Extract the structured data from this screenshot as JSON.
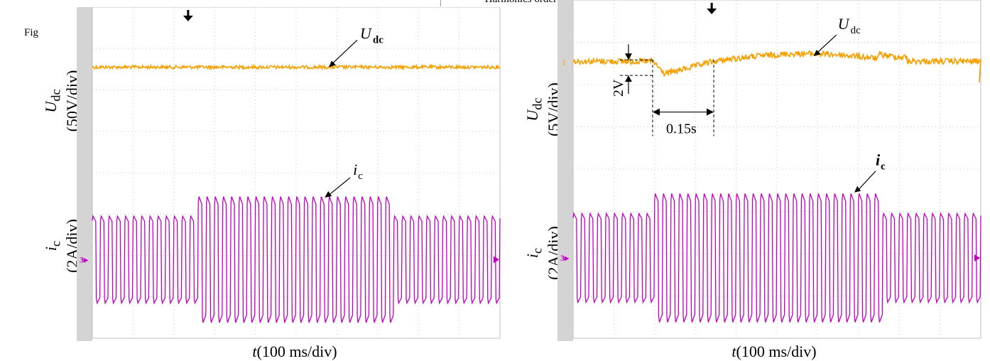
{
  "page": {
    "fragment_label": "Fig",
    "top_fragment": "Harmonics order n"
  },
  "chart_data": [
    {
      "type": "line",
      "panel": "left",
      "xlabel_var": "t",
      "xlabel_unit": "(100 ms/div)",
      "divisions_x": 10,
      "divisions_y": 8,
      "trigger_marker_div": 2.35,
      "udc": {
        "ylabel_var": "U",
        "ylabel_sub": "dc",
        "scale": "(50V/div)",
        "annotation": "U",
        "annotation_sub": "dc",
        "color": "#f5a000",
        "series": [
          {
            "t_div": [
              0,
              10
            ],
            "level_div": [
              1.45,
              1.45
            ],
            "noise_div": 0.04
          }
        ]
      },
      "ic": {
        "ylabel_var": "i",
        "ylabel_sub": "c",
        "scale": "(2A/div)",
        "annotation": "i",
        "annotation_sub": "c",
        "color": "#c000c0",
        "marker": "3",
        "cycles_per_div": 5,
        "envelope": [
          {
            "t_div": [
              0,
              2.55
            ],
            "amp_div": 1.0
          },
          {
            "t_div": [
              2.55,
              7.35
            ],
            "amp_div": 1.45
          },
          {
            "t_div": [
              7.35,
              10
            ],
            "amp_div": 1.0
          }
        ]
      }
    },
    {
      "type": "line",
      "panel": "right",
      "xlabel_var": "t",
      "xlabel_unit": "(100 ms/div)",
      "divisions_x": 10,
      "divisions_y": 8,
      "trigger_marker_div": 3.4,
      "udc": {
        "ylabel_var": "U",
        "ylabel_sub": "dc",
        "scale": "(5V/div)",
        "annotation": "U",
        "annotation_sub": "dc",
        "color": "#f5a000",
        "marker": "1",
        "dip_label": "2V",
        "dip_div": 0.3,
        "recovery_label": "0.15s",
        "recovery_start_div": 1.95,
        "recovery_end_div": 3.45
      },
      "ic": {
        "ylabel_var": "i",
        "ylabel_sub": "c",
        "scale": "(2A/div)",
        "annotation": "i",
        "annotation_sub": "c",
        "color": "#c000c0",
        "marker": "3",
        "cycles_per_div": 5,
        "envelope": [
          {
            "t_div": [
              0,
              2.0
            ],
            "amp_div": 1.0
          },
          {
            "t_div": [
              2.0,
              7.6
            ],
            "amp_div": 1.45
          },
          {
            "t_div": [
              7.6,
              10
            ],
            "amp_div": 1.0
          }
        ]
      }
    }
  ]
}
